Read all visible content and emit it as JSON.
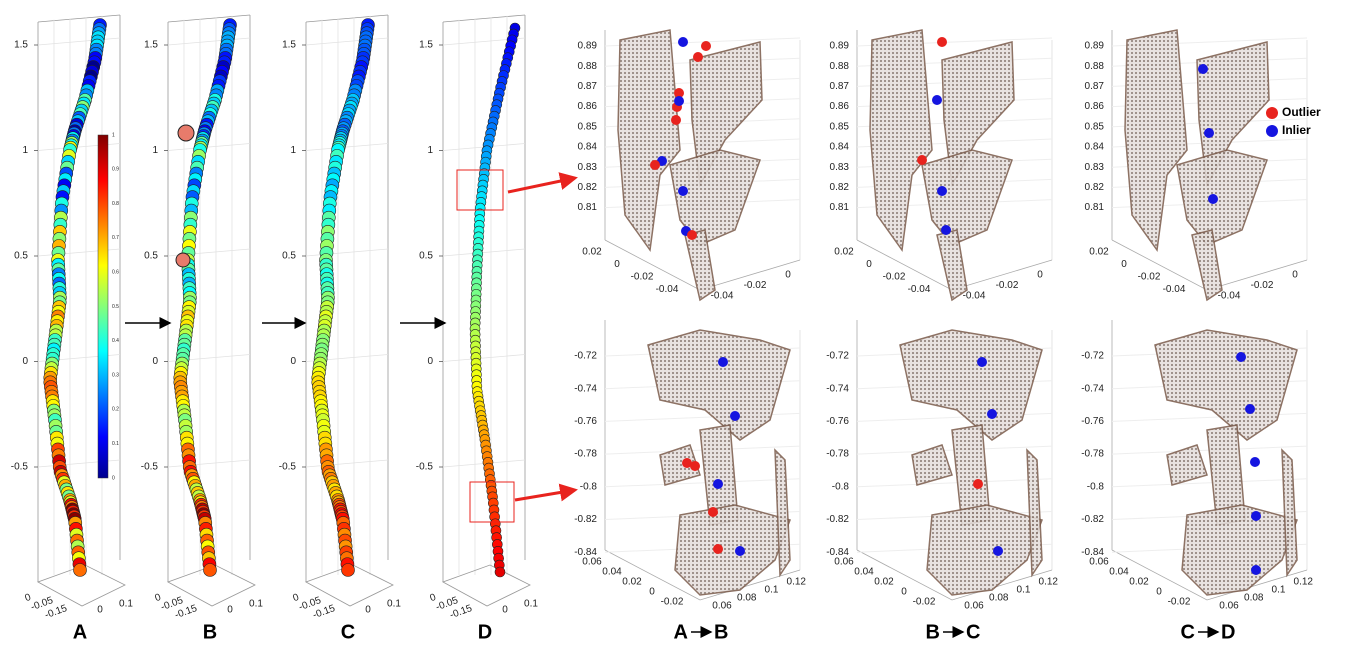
{
  "panels": [
    {
      "label": "A"
    },
    {
      "label": "B"
    },
    {
      "label": "C"
    },
    {
      "label": "D"
    }
  ],
  "trajectory_axis": {
    "z_ticks": [
      "1.5",
      "1",
      "0.5",
      "0",
      "-0.5"
    ],
    "floor_ticks": [
      "0",
      "-0.05",
      "-0.15",
      "0",
      "0.1"
    ]
  },
  "colorbar_ticks": [
    "1",
    "0.9",
    "0.8",
    "0.7",
    "0.6",
    "0.5",
    "0.4",
    "0.3",
    "0.2",
    "0.1",
    "0"
  ],
  "transitions": [
    {
      "from": "A",
      "to": "B"
    },
    {
      "from": "B",
      "to": "C"
    },
    {
      "from": "C",
      "to": "D"
    }
  ],
  "top_row": {
    "z_ticks": [
      "0.89",
      "0.88",
      "0.87",
      "0.86",
      "0.85",
      "0.84",
      "0.83",
      "0.82",
      "0.81"
    ],
    "left_ticks": [
      "0.02",
      "0",
      "-0.02",
      "-0.04"
    ],
    "right_ticks": [
      "-0.04",
      "-0.02",
      "0"
    ]
  },
  "bottom_row": {
    "z_ticks": [
      "-0.72",
      "-0.74",
      "-0.76",
      "-0.78",
      "-0.8",
      "-0.82",
      "-0.84"
    ],
    "left_ticks": [
      "0.06",
      "0.04",
      "0.02",
      "0",
      "-0.02"
    ],
    "right_ticks": [
      "0.06",
      "0.08",
      "0.1",
      "0.12"
    ]
  },
  "legend": {
    "outlier": "Outlier",
    "inlier": "Inlier"
  }
}
